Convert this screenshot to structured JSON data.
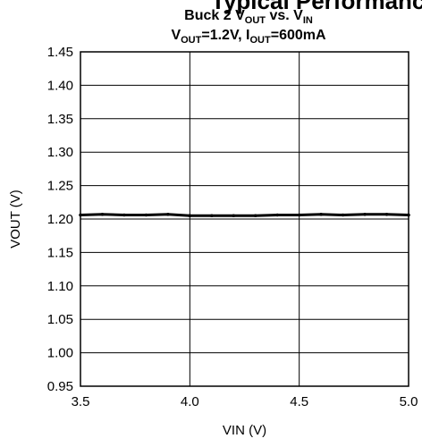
{
  "header": {
    "cutoff_text": "Typical Performance"
  },
  "chart_data": {
    "type": "line",
    "title": {
      "line1": {
        "prefix": "Buck 2 V",
        "sub1": "OUT",
        "mid": " vs. V",
        "sub2": "IN"
      },
      "line2": {
        "prefix": "V",
        "sub1": "OUT",
        "mid": "=1.2V, I",
        "sub2": "OUT",
        "suffix": "=600mA"
      }
    },
    "xlabel": "VIN (V)",
    "ylabel": "VOUT (V)",
    "xlim": [
      3.5,
      5.0
    ],
    "ylim": [
      0.95,
      1.45
    ],
    "x_ticks": [
      3.5,
      4.0,
      4.5,
      5.0
    ],
    "x_tick_labels": [
      "3.5",
      "4.0",
      "4.5",
      "5.0"
    ],
    "y_ticks": [
      0.95,
      1.0,
      1.05,
      1.1,
      1.15,
      1.2,
      1.25,
      1.3,
      1.35,
      1.4,
      1.45
    ],
    "y_tick_labels": [
      "0.95",
      "1.00",
      "1.05",
      "1.10",
      "1.15",
      "1.20",
      "1.25",
      "1.30",
      "1.35",
      "1.40",
      "1.45"
    ],
    "grid": true,
    "series": [
      {
        "x": [
          3.5,
          3.6,
          3.7,
          3.8,
          3.9,
          4.0,
          4.1,
          4.2,
          4.3,
          4.4,
          4.5,
          4.6,
          4.7,
          4.8,
          4.9,
          5.0
        ],
        "values": [
          1.206,
          1.207,
          1.206,
          1.206,
          1.207,
          1.205,
          1.205,
          1.205,
          1.205,
          1.206,
          1.206,
          1.207,
          1.206,
          1.207,
          1.207,
          1.206
        ],
        "color": "#000000"
      }
    ]
  }
}
